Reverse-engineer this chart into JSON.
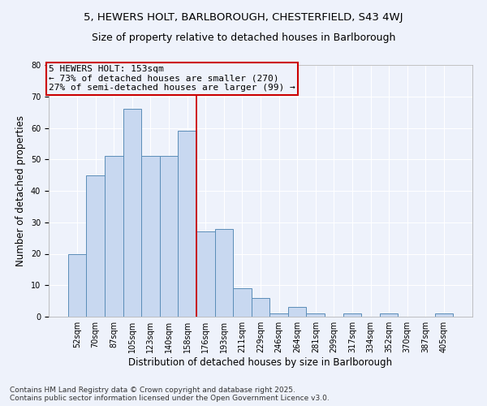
{
  "title_line1": "5, HEWERS HOLT, BARLBOROUGH, CHESTERFIELD, S43 4WJ",
  "title_line2": "Size of property relative to detached houses in Barlborough",
  "xlabel": "Distribution of detached houses by size in Barlborough",
  "ylabel": "Number of detached properties",
  "categories": [
    "52sqm",
    "70sqm",
    "87sqm",
    "105sqm",
    "123sqm",
    "140sqm",
    "158sqm",
    "176sqm",
    "193sqm",
    "211sqm",
    "229sqm",
    "246sqm",
    "264sqm",
    "281sqm",
    "299sqm",
    "317sqm",
    "334sqm",
    "352sqm",
    "370sqm",
    "387sqm",
    "405sqm"
  ],
  "values": [
    20,
    45,
    51,
    66,
    51,
    51,
    59,
    27,
    28,
    9,
    6,
    1,
    3,
    1,
    0,
    1,
    0,
    1,
    0,
    0,
    1
  ],
  "bar_color": "#c8d8f0",
  "bar_edge_color": "#5b8db8",
  "background_color": "#eef2fb",
  "grid_color": "#ffffff",
  "vline_x_index": 6.5,
  "vline_color": "#cc0000",
  "annotation_title": "5 HEWERS HOLT: 153sqm",
  "annotation_line2": "← 73% of detached houses are smaller (270)",
  "annotation_line3": "27% of semi-detached houses are larger (99) →",
  "annotation_box_color": "#cc0000",
  "ylim": [
    0,
    80
  ],
  "yticks": [
    0,
    10,
    20,
    30,
    40,
    50,
    60,
    70,
    80
  ],
  "footnote_line1": "Contains HM Land Registry data © Crown copyright and database right 2025.",
  "footnote_line2": "Contains public sector information licensed under the Open Government Licence v3.0.",
  "title_fontsize": 9.5,
  "subtitle_fontsize": 9,
  "axis_label_fontsize": 8.5,
  "tick_fontsize": 7,
  "annotation_fontsize": 8,
  "footnote_fontsize": 6.5
}
